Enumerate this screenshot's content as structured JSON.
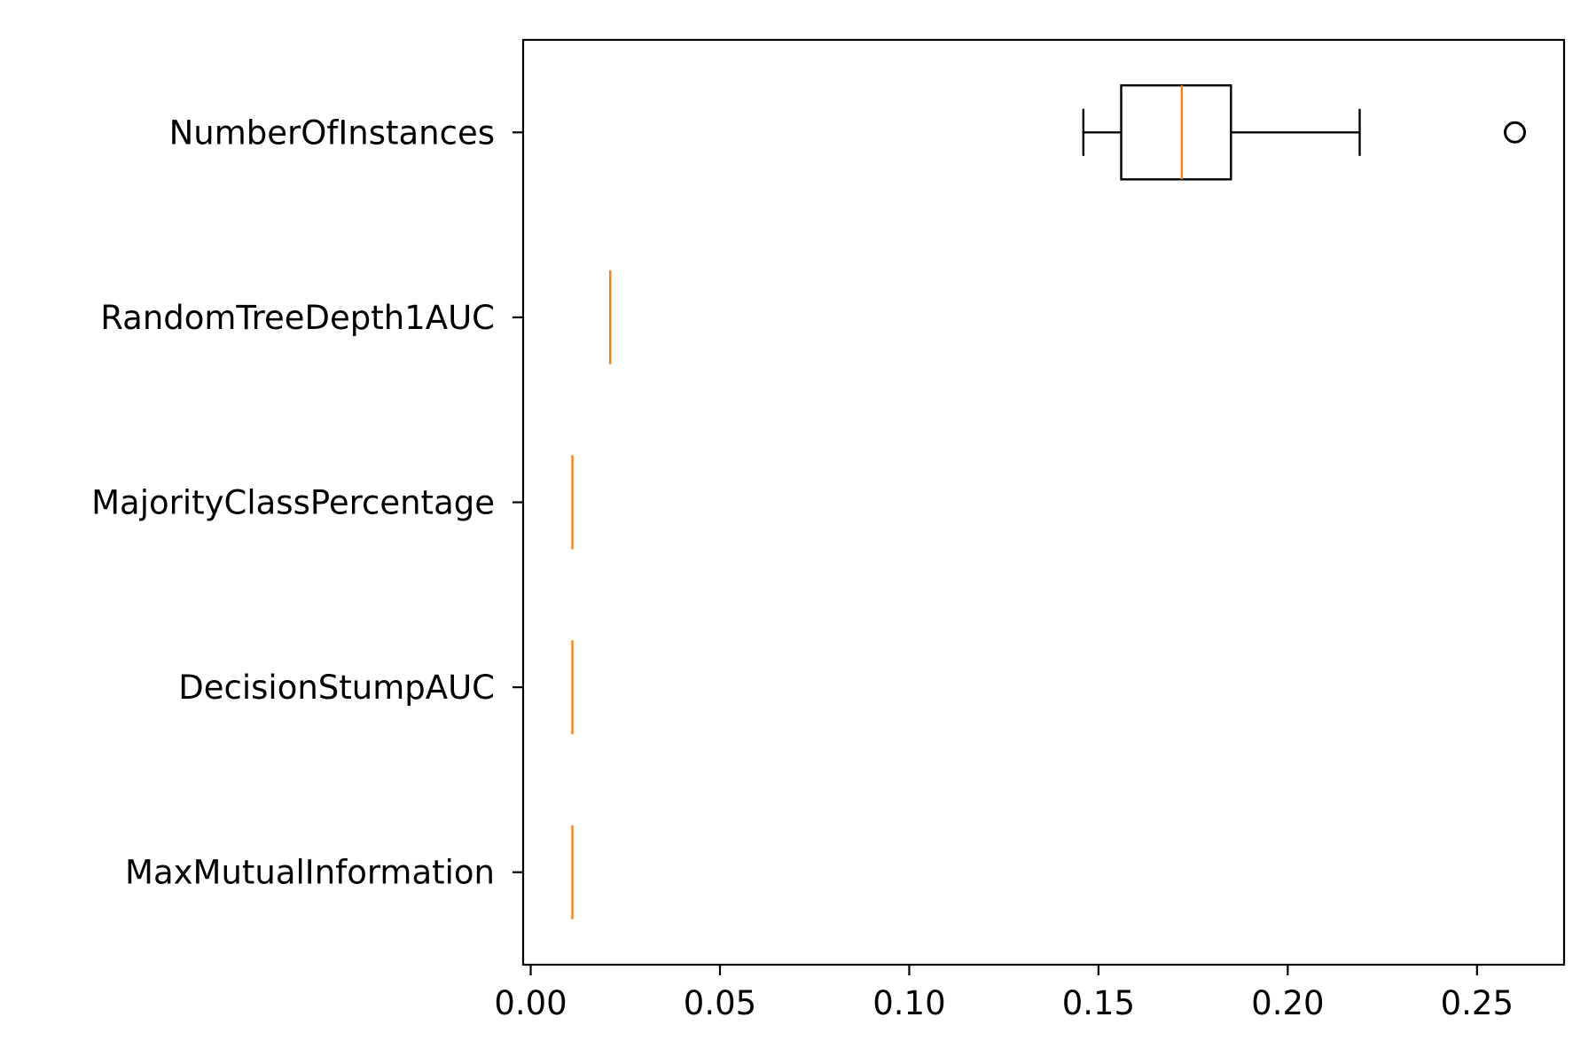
{
  "chart_data": {
    "type": "boxplot",
    "orientation": "horizontal",
    "title": "",
    "xlabel": "",
    "ylabel": "",
    "xlim": [
      -0.002,
      0.273
    ],
    "x_ticks": [
      0.0,
      0.05,
      0.1,
      0.15,
      0.2,
      0.25
    ],
    "x_tick_labels": [
      "0.00",
      "0.05",
      "0.10",
      "0.15",
      "0.20",
      "0.25"
    ],
    "grid": false,
    "colors": {
      "box": "#000000",
      "median": "#ff7f0e",
      "outlier": "#000000"
    },
    "categories": [
      "NumberOfInstances",
      "RandomTreeDepth1AUC",
      "MajorityClassPercentage",
      "DecisionStumpAUC",
      "MaxMutualInformation"
    ],
    "boxes": [
      {
        "label": "NumberOfInstances",
        "whisker_low": 0.146,
        "q1": 0.156,
        "median": 0.172,
        "q3": 0.185,
        "whisker_high": 0.219,
        "outliers": [
          0.26
        ]
      },
      {
        "label": "RandomTreeDepth1AUC",
        "whisker_low": 0.021,
        "q1": 0.021,
        "median": 0.021,
        "q3": 0.021,
        "whisker_high": 0.021,
        "outliers": []
      },
      {
        "label": "MajorityClassPercentage",
        "whisker_low": 0.011,
        "q1": 0.011,
        "median": 0.011,
        "q3": 0.011,
        "whisker_high": 0.011,
        "outliers": []
      },
      {
        "label": "DecisionStumpAUC",
        "whisker_low": 0.011,
        "q1": 0.011,
        "median": 0.011,
        "q3": 0.011,
        "whisker_high": 0.011,
        "outliers": []
      },
      {
        "label": "MaxMutualInformation",
        "whisker_low": 0.011,
        "q1": 0.011,
        "median": 0.011,
        "q3": 0.011,
        "whisker_high": 0.011,
        "outliers": []
      }
    ]
  }
}
